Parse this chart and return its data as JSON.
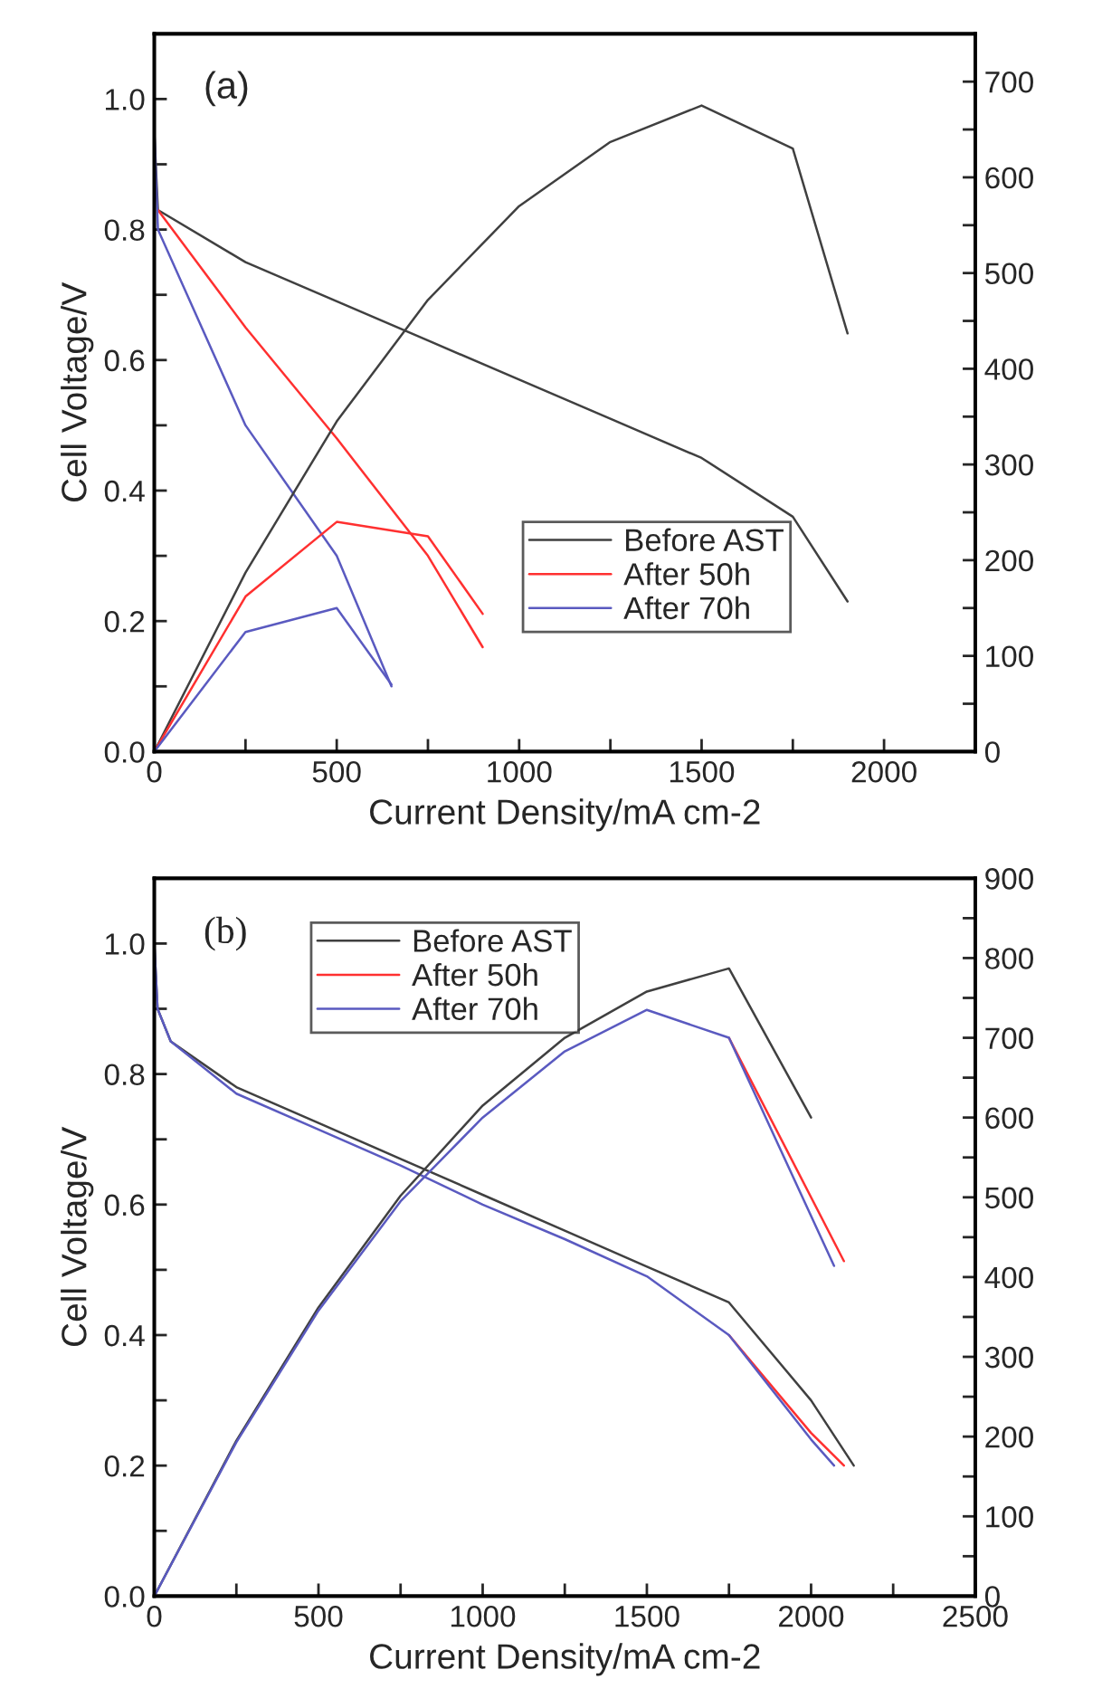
{
  "chart_data": [
    {
      "type": "line",
      "xlabel": "Current Density/mA cm-2",
      "ylabel": "Cell Voltage/V",
      "annotations": [
        "(a)"
      ],
      "legend": "bottom right",
      "grid": false,
      "marker": "none",
      "line_style": "solid",
      "xlim": [
        0,
        2250
      ],
      "xticks": [
        0,
        {
          "value": 250,
          "label": null
        },
        500,
        {
          "value": 750,
          "label": null
        },
        1000,
        {
          "value": 1250,
          "label": null
        },
        1500,
        {
          "value": 1750,
          "label": null
        },
        2000
      ],
      "ylim": [
        0,
        1.1
      ],
      "yticks": [
        {
          "value": 0,
          "label": "0.0"
        },
        {
          "value": 0.1,
          "label": null
        },
        0.2,
        {
          "value": 0.3,
          "label": null
        },
        0.4,
        {
          "value": 0.5,
          "label": null
        },
        0.6,
        {
          "value": 0.7,
          "label": null
        },
        0.8,
        {
          "value": 0.9,
          "label": null
        },
        {
          "value": 1,
          "label": "1.0"
        }
      ],
      "y2lim": [
        0,
        750
      ],
      "y2ticks": [
        0,
        {
          "value": 50,
          "label": null
        },
        100,
        {
          "value": 150,
          "label": null
        },
        200,
        {
          "value": 250,
          "label": null
        },
        300,
        {
          "value": 350,
          "label": null
        },
        400,
        {
          "value": 450,
          "label": null
        },
        500,
        {
          "value": 550,
          "label": null
        },
        600,
        {
          "value": 650,
          "label": null
        },
        700
      ],
      "series": [
        {
          "name": "Before AST",
          "color": "#404040",
          "x": [
            0,
            10,
            250,
            500,
            750,
            1000,
            1250,
            1500,
            1750,
            1900
          ],
          "values": [
            0.95,
            0.83,
            0.75,
            0.69,
            0.63,
            0.57,
            0.51,
            0.45,
            0.36,
            0.23
          ]
        },
        {
          "name": "After 50h",
          "color": "#ff3030",
          "x": [
            10,
            250,
            500,
            750,
            900
          ],
          "values": [
            0.83,
            0.65,
            0.48,
            0.3,
            0.16
          ]
        },
        {
          "name": "After 70h",
          "color": "#5a5ac0",
          "x": [
            0,
            10,
            250,
            500,
            650
          ],
          "values": [
            0.95,
            0.8,
            0.5,
            0.3,
            0.1
          ]
        },
        {
          "color": "#404040",
          "axis": "y2",
          "x": [
            0,
            250,
            500,
            750,
            1000,
            1250,
            1500,
            1750,
            1900
          ],
          "values": [
            0,
            187,
            345,
            472,
            570,
            637,
            675,
            630,
            437
          ]
        },
        {
          "color": "#ff3030",
          "axis": "y2",
          "x": [
            0,
            250,
            500,
            750,
            900
          ],
          "values": [
            0,
            162,
            240,
            225,
            144
          ]
        },
        {
          "color": "#5a5ac0",
          "axis": "y2",
          "x": [
            0,
            250,
            500,
            650
          ],
          "values": [
            0,
            125,
            150,
            70
          ]
        }
      ]
    },
    {
      "type": "line",
      "xlabel": "Current Density/mA cm-2",
      "ylabel": "Cell Voltage/V",
      "annotations": [
        "(b)"
      ],
      "legend": "top left",
      "grid": false,
      "marker": "none",
      "line_style": "solid",
      "xlim": [
        0,
        2500
      ],
      "xticks": [
        0,
        {
          "value": 250,
          "label": null
        },
        500,
        {
          "value": 750,
          "label": null
        },
        1000,
        {
          "value": 1250,
          "label": null
        },
        1500,
        {
          "value": 1750,
          "label": null
        },
        2000,
        {
          "value": 2250,
          "label": null
        },
        2500
      ],
      "ylim": [
        0,
        1.1
      ],
      "yticks": [
        {
          "value": 0,
          "label": "0.0"
        },
        {
          "value": 0.1,
          "label": null
        },
        0.2,
        {
          "value": 0.3,
          "label": null
        },
        0.4,
        {
          "value": 0.5,
          "label": null
        },
        0.6,
        {
          "value": 0.7,
          "label": null
        },
        0.8,
        {
          "value": 0.9,
          "label": null
        },
        {
          "value": 1,
          "label": "1.0"
        }
      ],
      "y2lim": [
        0,
        900
      ],
      "y2ticks": [
        0,
        {
          "value": 50,
          "label": null
        },
        100,
        {
          "value": 150,
          "label": null
        },
        200,
        {
          "value": 250,
          "label": null
        },
        300,
        {
          "value": 350,
          "label": null
        },
        400,
        {
          "value": 450,
          "label": null
        },
        500,
        {
          "value": 550,
          "label": null
        },
        600,
        {
          "value": 650,
          "label": null
        },
        700,
        {
          "value": 750,
          "label": null
        },
        800,
        {
          "value": 850,
          "label": null
        },
        900
      ],
      "series": [
        {
          "name": "Before AST",
          "color": "#404040",
          "x": [
            0,
            10,
            50,
            250,
            500,
            750,
            1000,
            1250,
            1500,
            1750,
            2000,
            2130
          ],
          "values": [
            1.0,
            0.9,
            0.85,
            0.78,
            0.725,
            0.67,
            0.615,
            0.56,
            0.505,
            0.45,
            0.3,
            0.2
          ]
        },
        {
          "name": "After 50h",
          "color": "#ff3030",
          "x": [
            1750,
            2000,
            2100
          ],
          "values": [
            0.4,
            0.25,
            0.2
          ]
        },
        {
          "name": "After 70h",
          "color": "#5a5ac0",
          "x": [
            0,
            10,
            50,
            250,
            500,
            750,
            1000,
            1250,
            1500,
            1750,
            2000,
            2070
          ],
          "values": [
            1.0,
            0.9,
            0.85,
            0.77,
            0.715,
            0.66,
            0.6,
            0.547,
            0.49,
            0.4,
            0.24,
            0.2
          ]
        },
        {
          "color": "#404040",
          "axis": "y2",
          "x": [
            0,
            250,
            500,
            750,
            1000,
            1250,
            1500,
            1750,
            2000
          ],
          "values": [
            0,
            195,
            362,
            502,
            615,
            700,
            758,
            787,
            600
          ]
        },
        {
          "color": "#ff3030",
          "axis": "y2",
          "x": [
            1750,
            2100
          ],
          "values": [
            700,
            420
          ]
        },
        {
          "color": "#5a5ac0",
          "axis": "y2",
          "x": [
            0,
            250,
            500,
            750,
            1000,
            1250,
            1500,
            1750,
            2070
          ],
          "values": [
            0,
            193,
            358,
            495,
            600,
            683,
            735,
            700,
            414
          ]
        }
      ]
    }
  ]
}
